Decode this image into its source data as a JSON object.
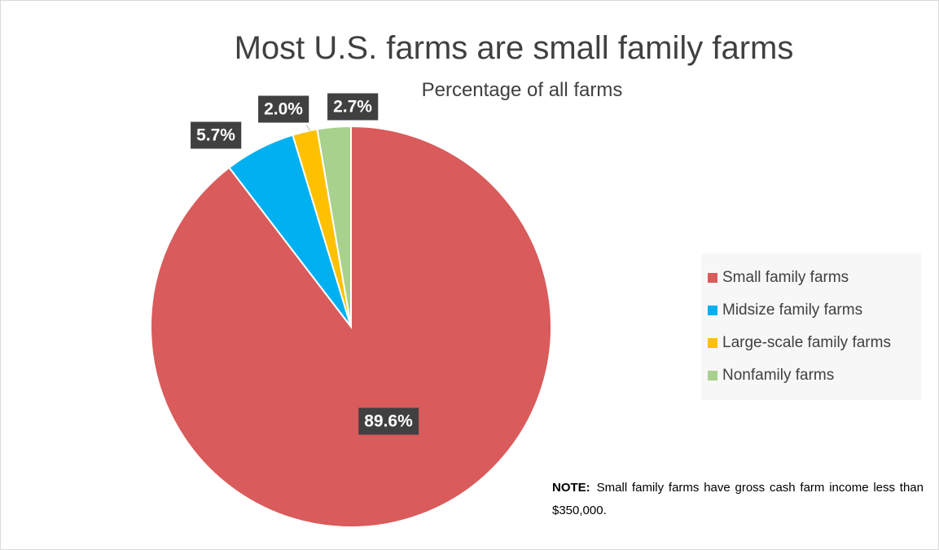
{
  "chart_data": {
    "type": "pie",
    "title": "Most U.S. farms are small family farms",
    "subtitle": "Percentage of all farms",
    "categories": [
      "Small family farms",
      "Midsize family farms",
      "Large-scale family farms",
      "Nonfamily farms"
    ],
    "values": [
      89.6,
      5.7,
      2.0,
      2.7
    ],
    "data_labels": [
      "89.6%",
      "5.7%",
      "2.0%",
      "2.7%"
    ],
    "colors": [
      "#d95b5b",
      "#00b0f0",
      "#ffc000",
      "#a9d18e"
    ],
    "legend": "right",
    "start_angle_deg": 0,
    "direction": "clockwise"
  },
  "note": {
    "label": "NOTE:",
    "text": "Small family farms have gross cash farm income less than $350,000."
  }
}
